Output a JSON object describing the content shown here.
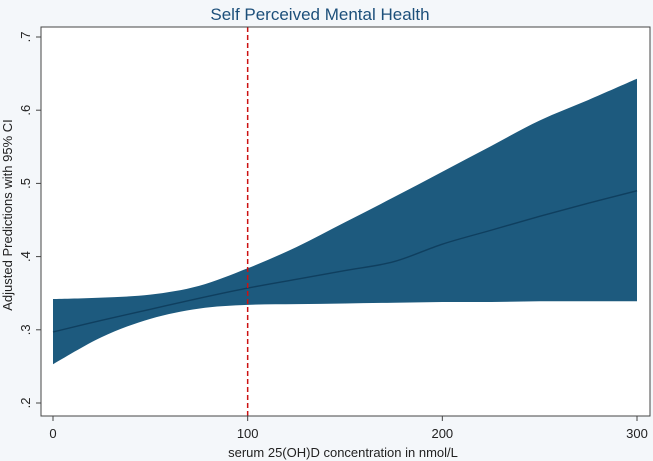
{
  "chart_data": {
    "type": "area",
    "title": "Self Perceived Mental Health",
    "xlabel": "serum 25(OH)D concentration in nmol/L",
    "ylabel": "Adjusted Predictions with 95% CI",
    "xlim": [
      0,
      300
    ],
    "ylim": [
      0.2,
      0.7
    ],
    "x_ticks": [
      0,
      100,
      200,
      300
    ],
    "x_tick_labels": [
      "0",
      "100",
      "200",
      "300"
    ],
    "y_ticks": [
      0.2,
      0.3,
      0.4,
      0.5,
      0.6,
      0.7
    ],
    "y_tick_labels": [
      ".2",
      ".3",
      ".4",
      ".5",
      ".6",
      ".7"
    ],
    "grid": false,
    "reference_line": {
      "x": 100,
      "color": "#cc1111",
      "style": "dashed"
    },
    "series": [
      {
        "x": [
          0,
          25,
          50,
          75,
          100,
          125,
          150,
          175,
          200,
          225,
          250,
          275,
          300
        ],
        "prediction": [
          0.297,
          0.313,
          0.328,
          0.343,
          0.357,
          0.369,
          0.381,
          0.393,
          0.417,
          0.436,
          0.455,
          0.473,
          0.49
        ],
        "ci_lower": [
          0.253,
          0.29,
          0.315,
          0.329,
          0.334,
          0.335,
          0.336,
          0.337,
          0.338,
          0.338,
          0.339,
          0.339,
          0.339
        ],
        "ci_upper": [
          0.342,
          0.344,
          0.348,
          0.36,
          0.384,
          0.413,
          0.447,
          0.481,
          0.516,
          0.551,
          0.586,
          0.614,
          0.643
        ]
      }
    ],
    "colors": {
      "band": "#1d5a7e",
      "line": "#0f3f5f",
      "background": "#f4f7fa",
      "title": "#1c4f7a"
    }
  }
}
